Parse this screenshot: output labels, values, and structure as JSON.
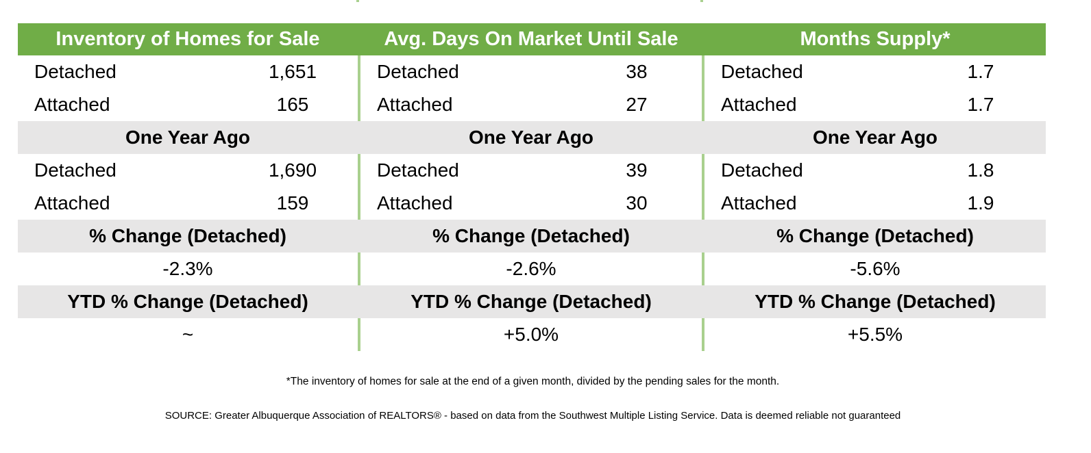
{
  "columns": [
    {
      "header": "Inventory of Homes for Sale",
      "current": [
        {
          "label": "Detached",
          "value": "1,651"
        },
        {
          "label": "Attached",
          "value": "165"
        }
      ],
      "year_ago_label": "One Year Ago",
      "year_ago": [
        {
          "label": "Detached",
          "value": "1,690"
        },
        {
          "label": "Attached",
          "value": "159"
        }
      ],
      "pct_change_label": "% Change (Detached)",
      "pct_change": "-2.3%",
      "ytd_label": "YTD % Change (Detached)",
      "ytd": "~"
    },
    {
      "header": "Avg. Days On Market Until Sale",
      "current": [
        {
          "label": "Detached",
          "value": "38"
        },
        {
          "label": "Attached",
          "value": "27"
        }
      ],
      "year_ago_label": "One Year Ago",
      "year_ago": [
        {
          "label": "Detached",
          "value": "39"
        },
        {
          "label": "Attached",
          "value": "30"
        }
      ],
      "pct_change_label": "% Change (Detached)",
      "pct_change": "-2.6%",
      "ytd_label": "YTD % Change (Detached)",
      "ytd": "+5.0%"
    },
    {
      "header": "Months Supply*",
      "current": [
        {
          "label": "Detached",
          "value": "1.7"
        },
        {
          "label": "Attached",
          "value": "1.7"
        }
      ],
      "year_ago_label": "One Year Ago",
      "year_ago": [
        {
          "label": "Detached",
          "value": "1.8"
        },
        {
          "label": "Attached",
          "value": "1.9"
        }
      ],
      "pct_change_label": "% Change (Detached)",
      "pct_change": "-5.6%",
      "ytd_label": "YTD % Change (Detached)",
      "ytd": "+5.5%"
    }
  ],
  "footnote": "*The inventory of homes for sale at the end of a given month, divided by the pending sales for the month.",
  "source": "SOURCE: Greater Albuquerque Association of REALTORS® - based on data from the Southwest Multiple Listing Service.  Data is deemed reliable not guaranteed",
  "colors": {
    "header_green": "#70ad47",
    "divider_green": "#a9d08e",
    "band_gray": "#e7e6e6"
  }
}
